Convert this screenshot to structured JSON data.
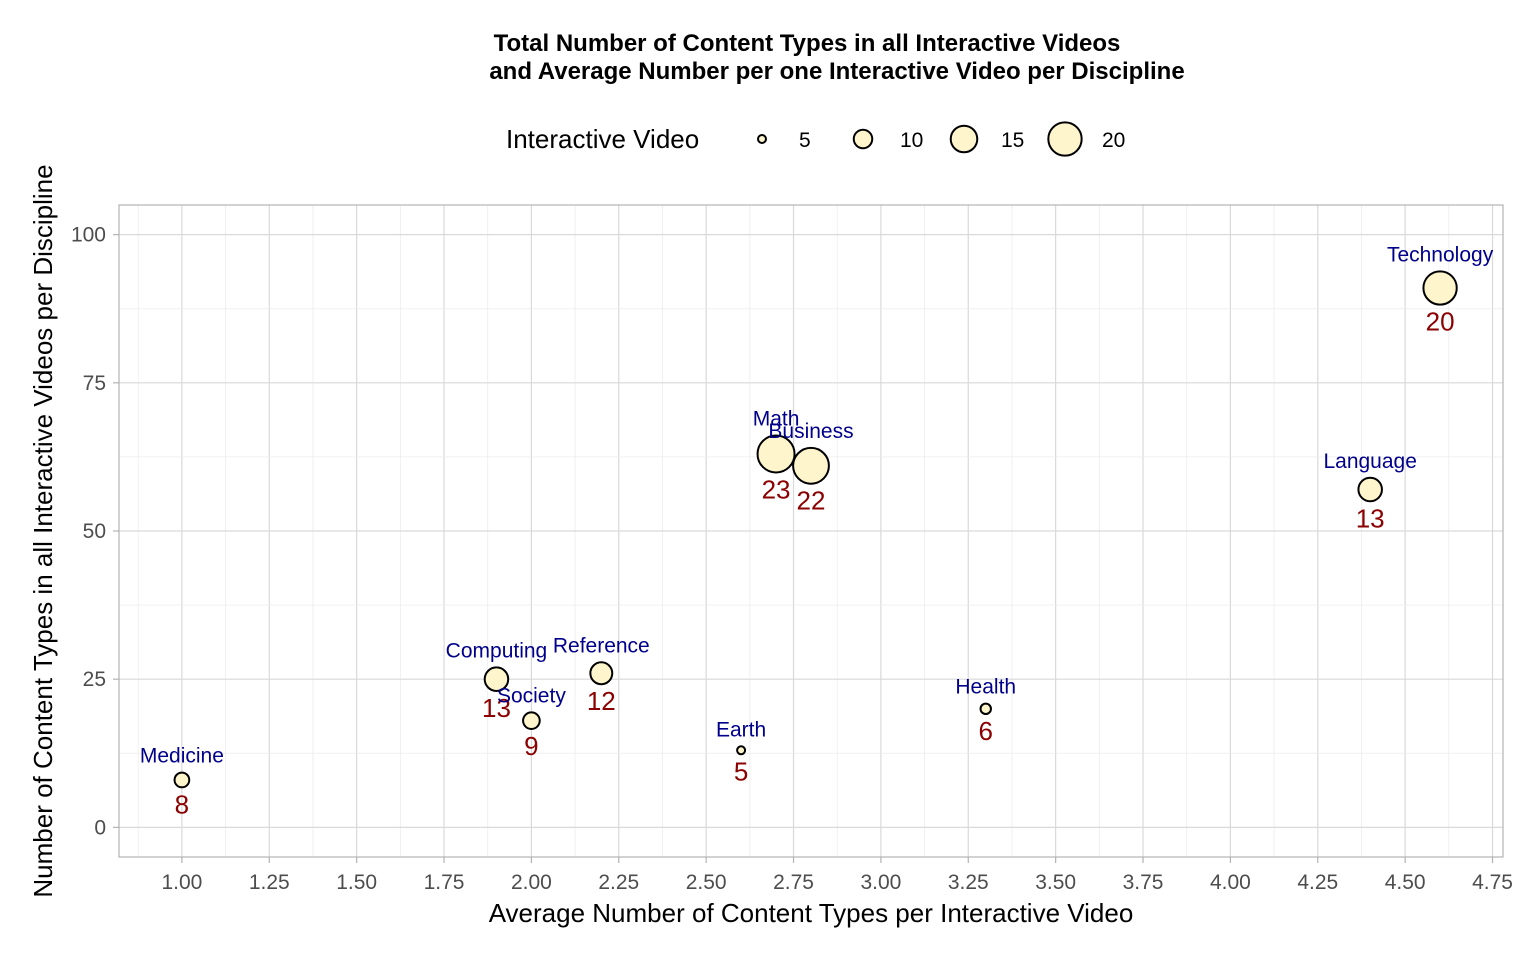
{
  "chart_data": {
    "type": "scatter",
    "title": [
      "Total Number of Content Types in all Interactive Videos",
      "and Average Number per one Interactive Video per Discipline"
    ],
    "xlabel": "Average Number of Content Types per Interactive Video",
    "ylabel": "Number of Content Types in all Interactive Videos per Discipline",
    "xlim": [
      0.82,
      4.78
    ],
    "ylim": [
      -5,
      105
    ],
    "x_ticks": [
      "1.00",
      "1.25",
      "1.50",
      "1.75",
      "2.00",
      "2.25",
      "2.50",
      "2.75",
      "3.00",
      "3.25",
      "3.50",
      "3.75",
      "4.00",
      "4.25",
      "4.50",
      "4.75"
    ],
    "y_ticks": [
      "0",
      "25",
      "50",
      "75",
      "100"
    ],
    "grid": true,
    "legend": {
      "title": "Interactive Video",
      "position": "top",
      "sizes": [
        "5",
        "10",
        "15",
        "20"
      ]
    },
    "size_label": "Interactive Video",
    "points": [
      {
        "name": "Medicine",
        "x": 1.0,
        "y": 8,
        "size": 8,
        "label": "8"
      },
      {
        "name": "Computing",
        "x": 1.9,
        "y": 25,
        "size": 13,
        "label": "13"
      },
      {
        "name": "Society",
        "x": 2.0,
        "y": 18,
        "size": 9,
        "label": "9"
      },
      {
        "name": "Reference",
        "x": 2.2,
        "y": 26,
        "size": 12,
        "label": "12"
      },
      {
        "name": "Earth",
        "x": 2.6,
        "y": 13,
        "size": 5,
        "label": "5"
      },
      {
        "name": "Math",
        "x": 2.7,
        "y": 63,
        "size": 23,
        "label": "23"
      },
      {
        "name": "Business",
        "x": 2.8,
        "y": 61,
        "size": 22,
        "label": "22"
      },
      {
        "name": "Health",
        "x": 3.3,
        "y": 20,
        "size": 6,
        "label": "6"
      },
      {
        "name": "Language",
        "x": 4.4,
        "y": 57,
        "size": 13,
        "label": "13"
      },
      {
        "name": "Technology",
        "x": 4.6,
        "y": 91,
        "size": 20,
        "label": "20"
      }
    ],
    "colors": {
      "fill": "#fff5cc",
      "stroke": "#000000",
      "name_label": "#00008b",
      "value_label": "#8b0000"
    }
  }
}
